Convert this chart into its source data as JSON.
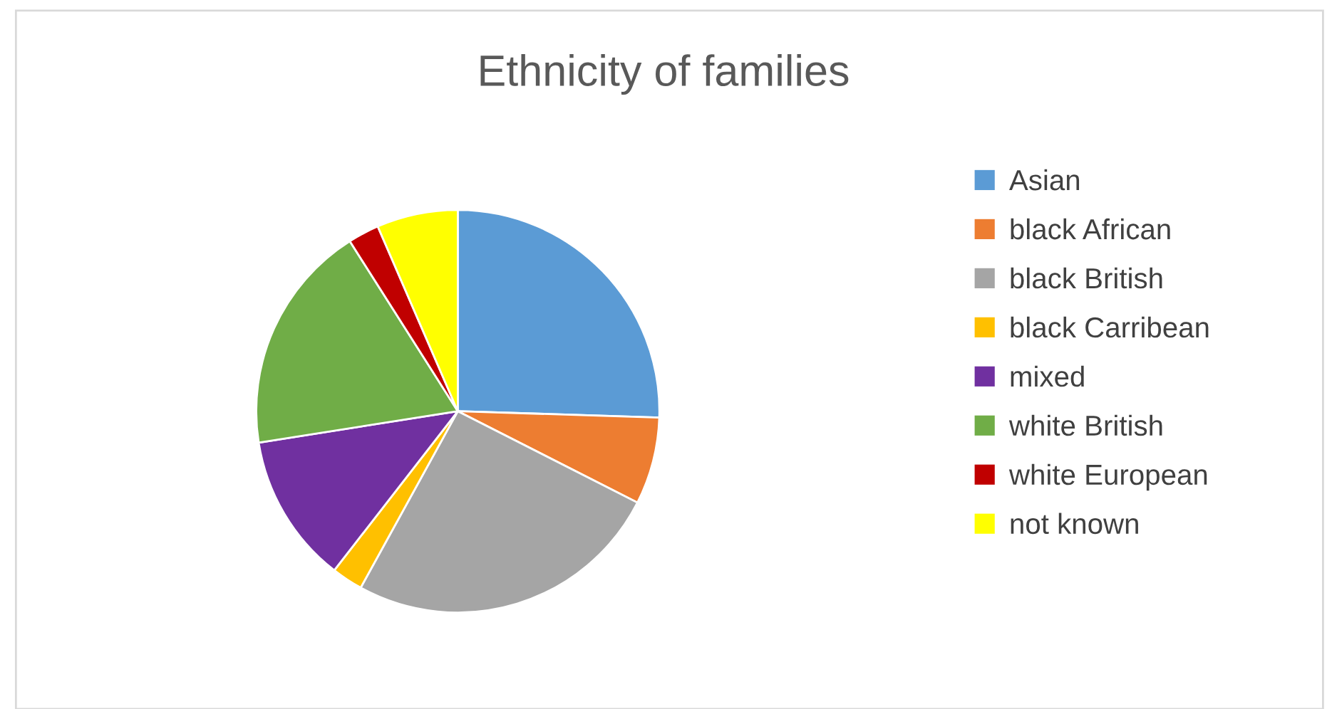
{
  "chart_data": {
    "type": "pie",
    "title": "Ethnicity of families",
    "categories": [
      "Asian",
      "black African",
      "black British",
      "black Carribean",
      "mixed",
      "white British",
      "white European",
      "not known"
    ],
    "values": [
      25.5,
      7,
      25.5,
      2.5,
      12,
      18.5,
      2.5,
      6.5
    ],
    "colors": [
      "#5b9bd5",
      "#ed7d31",
      "#a5a5a5",
      "#ffc000",
      "#7030a0",
      "#70ad47",
      "#c00000",
      "#ffff00"
    ],
    "legend": "right"
  }
}
